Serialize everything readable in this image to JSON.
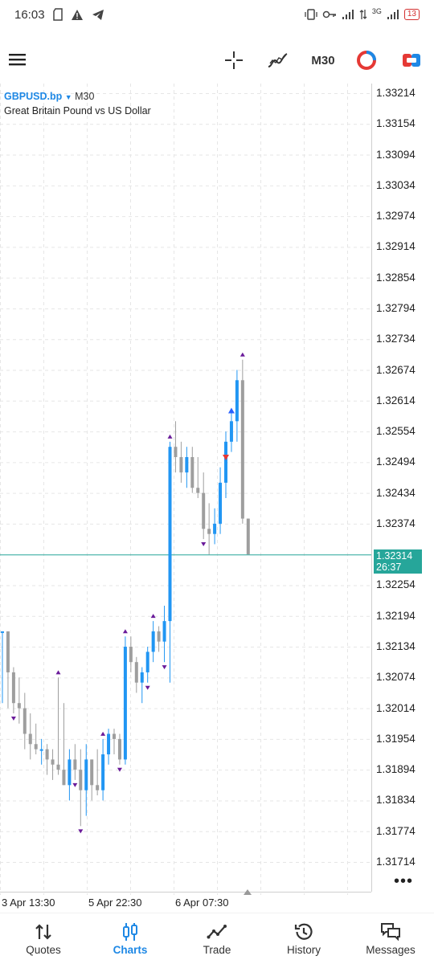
{
  "status_bar": {
    "time": "16:03",
    "network": "3G",
    "battery": "13"
  },
  "toolbar": {
    "timeframe": "M30",
    "icons": [
      "menu-icon",
      "crosshair-icon",
      "indicators-icon",
      "timeframe",
      "one-click-trading-icon",
      "trade-panel-icon"
    ]
  },
  "chart": {
    "symbol": "GBPUSD.bp",
    "timeframe": "M30",
    "description": "Great Britain Pound vs US Dollar",
    "price_levels": [
      "1.33214",
      "1.33154",
      "1.33094",
      "1.33034",
      "1.32974",
      "1.32914",
      "1.32854",
      "1.32794",
      "1.32734",
      "1.32674",
      "1.32614",
      "1.32554",
      "1.32494",
      "1.32434",
      "1.32374",
      "1.32254",
      "1.32194",
      "1.32134",
      "1.32074",
      "1.32014",
      "1.31954",
      "1.31894",
      "1.31834",
      "1.31774",
      "1.31714"
    ],
    "current_price": "1.32314",
    "countdown": "26:37",
    "time_labels": [
      "3 Apr 13:30",
      "5 Apr 22:30",
      "6 Apr 07:30"
    ],
    "colors": {
      "bull": "#2196f3",
      "bear": "#9e9e9e",
      "grid": "#e6e6e6",
      "current_line": "#26a69a",
      "fractal": "#6a1b9a",
      "buy_arrow": "#2962ff",
      "sell_arrow": "#e53935"
    }
  },
  "chart_data": {
    "type": "candlestick",
    "series": [
      {
        "o": 1.32164,
        "h": 1.32164,
        "l": 1.32024,
        "c": 1.32164
      },
      {
        "o": 1.32164,
        "h": 1.32164,
        "l": 1.32014,
        "c": 1.32084
      },
      {
        "o": 1.32084,
        "h": 1.32094,
        "l": 1.32004,
        "c": 1.32024
      },
      {
        "o": 1.32024,
        "h": 1.32074,
        "l": 1.31984,
        "c": 1.32014
      },
      {
        "o": 1.32014,
        "h": 1.32044,
        "l": 1.31934,
        "c": 1.31964
      },
      {
        "o": 1.31964,
        "h": 1.32004,
        "l": 1.31914,
        "c": 1.31944
      },
      {
        "o": 1.31944,
        "h": 1.31984,
        "l": 1.31924,
        "c": 1.31934
      },
      {
        "o": 1.31934,
        "h": 1.31954,
        "l": 1.31904,
        "c": 1.31934
      },
      {
        "o": 1.31934,
        "h": 1.31944,
        "l": 1.31884,
        "c": 1.31914
      },
      {
        "o": 1.31914,
        "h": 1.31934,
        "l": 1.31874,
        "c": 1.31904
      },
      {
        "o": 1.31904,
        "h": 1.32074,
        "l": 1.31884,
        "c": 1.31894
      },
      {
        "o": 1.31894,
        "h": 1.32024,
        "l": 1.31864,
        "c": 1.31864
      },
      {
        "o": 1.31864,
        "h": 1.31934,
        "l": 1.31834,
        "c": 1.31914
      },
      {
        "o": 1.31914,
        "h": 1.31944,
        "l": 1.31874,
        "c": 1.31894
      },
      {
        "o": 1.31894,
        "h": 1.31934,
        "l": 1.31784,
        "c": 1.31854
      },
      {
        "o": 1.31854,
        "h": 1.31944,
        "l": 1.31804,
        "c": 1.31914
      },
      {
        "o": 1.31914,
        "h": 1.31914,
        "l": 1.31834,
        "c": 1.31864
      },
      {
        "o": 1.31864,
        "h": 1.31934,
        "l": 1.31844,
        "c": 1.31854
      },
      {
        "o": 1.31854,
        "h": 1.31954,
        "l": 1.31834,
        "c": 1.31924
      },
      {
        "o": 1.31924,
        "h": 1.31974,
        "l": 1.31904,
        "c": 1.31964
      },
      {
        "o": 1.31964,
        "h": 1.31974,
        "l": 1.31924,
        "c": 1.31954
      },
      {
        "o": 1.31954,
        "h": 1.31964,
        "l": 1.31904,
        "c": 1.31914
      },
      {
        "o": 1.31914,
        "h": 1.32154,
        "l": 1.31904,
        "c": 1.32134
      },
      {
        "o": 1.32134,
        "h": 1.32154,
        "l": 1.32084,
        "c": 1.32104
      },
      {
        "o": 1.32104,
        "h": 1.32114,
        "l": 1.32044,
        "c": 1.32064
      },
      {
        "o": 1.32064,
        "h": 1.32094,
        "l": 1.32024,
        "c": 1.32084
      },
      {
        "o": 1.32084,
        "h": 1.32134,
        "l": 1.32064,
        "c": 1.32124
      },
      {
        "o": 1.32124,
        "h": 1.32184,
        "l": 1.32104,
        "c": 1.32164
      },
      {
        "o": 1.32164,
        "h": 1.32174,
        "l": 1.32124,
        "c": 1.32144
      },
      {
        "o": 1.32144,
        "h": 1.32214,
        "l": 1.32104,
        "c": 1.32184
      },
      {
        "o": 1.32184,
        "h": 1.32534,
        "l": 1.32064,
        "c": 1.32524
      },
      {
        "o": 1.32524,
        "h": 1.32574,
        "l": 1.32474,
        "c": 1.32504
      },
      {
        "o": 1.32504,
        "h": 1.32534,
        "l": 1.32454,
        "c": 1.32474
      },
      {
        "o": 1.32474,
        "h": 1.32524,
        "l": 1.32444,
        "c": 1.32504
      },
      {
        "o": 1.32504,
        "h": 1.32524,
        "l": 1.32434,
        "c": 1.32444
      },
      {
        "o": 1.32444,
        "h": 1.32504,
        "l": 1.32424,
        "c": 1.32434
      },
      {
        "o": 1.32434,
        "h": 1.32474,
        "l": 1.32344,
        "c": 1.32364
      },
      {
        "o": 1.32364,
        "h": 1.32414,
        "l": 1.32314,
        "c": 1.32354
      },
      {
        "o": 1.32354,
        "h": 1.32404,
        "l": 1.32334,
        "c": 1.32374
      },
      {
        "o": 1.32374,
        "h": 1.32484,
        "l": 1.32354,
        "c": 1.32454
      },
      {
        "o": 1.32454,
        "h": 1.32554,
        "l": 1.32424,
        "c": 1.32534
      },
      {
        "o": 1.32534,
        "h": 1.32594,
        "l": 1.32514,
        "c": 1.32574
      },
      {
        "o": 1.32574,
        "h": 1.32674,
        "l": 1.32534,
        "c": 1.32654
      },
      {
        "o": 1.32654,
        "h": 1.32694,
        "l": 1.32374,
        "c": 1.32384
      },
      {
        "o": 1.32384,
        "h": 1.32384,
        "l": 1.32314,
        "c": 1.32314
      }
    ],
    "fractals_up": [
      10,
      18,
      22,
      27,
      30,
      43
    ],
    "fractals_down": [
      2,
      13,
      14,
      21,
      26,
      29,
      36
    ],
    "trade_markers": [
      {
        "type": "buy",
        "candle": 41,
        "price": 1.32594
      },
      {
        "type": "sell",
        "candle": 40,
        "price": 1.32504
      }
    ],
    "current_price": 1.32314,
    "ylim": [
      1.31694,
      1.33234
    ]
  },
  "bottom_nav": {
    "items": [
      {
        "label": "Quotes",
        "icon": "quotes-icon"
      },
      {
        "label": "Charts",
        "icon": "charts-icon"
      },
      {
        "label": "Trade",
        "icon": "trade-icon"
      },
      {
        "label": "History",
        "icon": "history-icon"
      },
      {
        "label": "Messages",
        "icon": "messages-icon"
      }
    ],
    "active": "Charts"
  }
}
